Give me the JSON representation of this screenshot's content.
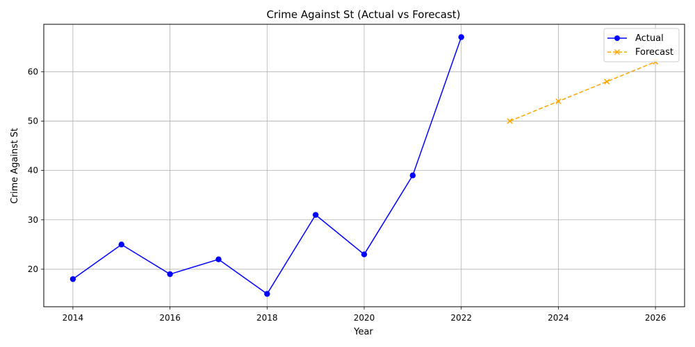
{
  "chart_data": {
    "type": "line",
    "title": "Crime Against St (Actual vs Forecast)",
    "xlabel": "Year",
    "ylabel": "Crime Against St",
    "xlim": [
      2013.4,
      2026.6
    ],
    "ylim": [
      12.4,
      69.6
    ],
    "xticks": [
      2014,
      2016,
      2018,
      2020,
      2022,
      2024,
      2026
    ],
    "yticks": [
      20,
      30,
      40,
      50,
      60
    ],
    "grid": true,
    "legend_position": "top-right",
    "series": [
      {
        "name": "Actual",
        "color": "#0000ff",
        "line_style": "solid",
        "marker": "circle",
        "x": [
          2014,
          2015,
          2016,
          2017,
          2018,
          2019,
          2020,
          2021,
          2022
        ],
        "y": [
          18,
          25,
          19,
          22,
          15,
          31,
          23,
          39,
          67
        ]
      },
      {
        "name": "Forecast",
        "color": "#ffa500",
        "line_style": "dashed",
        "marker": "x",
        "x": [
          2023,
          2024,
          2025,
          2026
        ],
        "y": [
          50,
          54,
          58,
          62
        ]
      }
    ]
  }
}
